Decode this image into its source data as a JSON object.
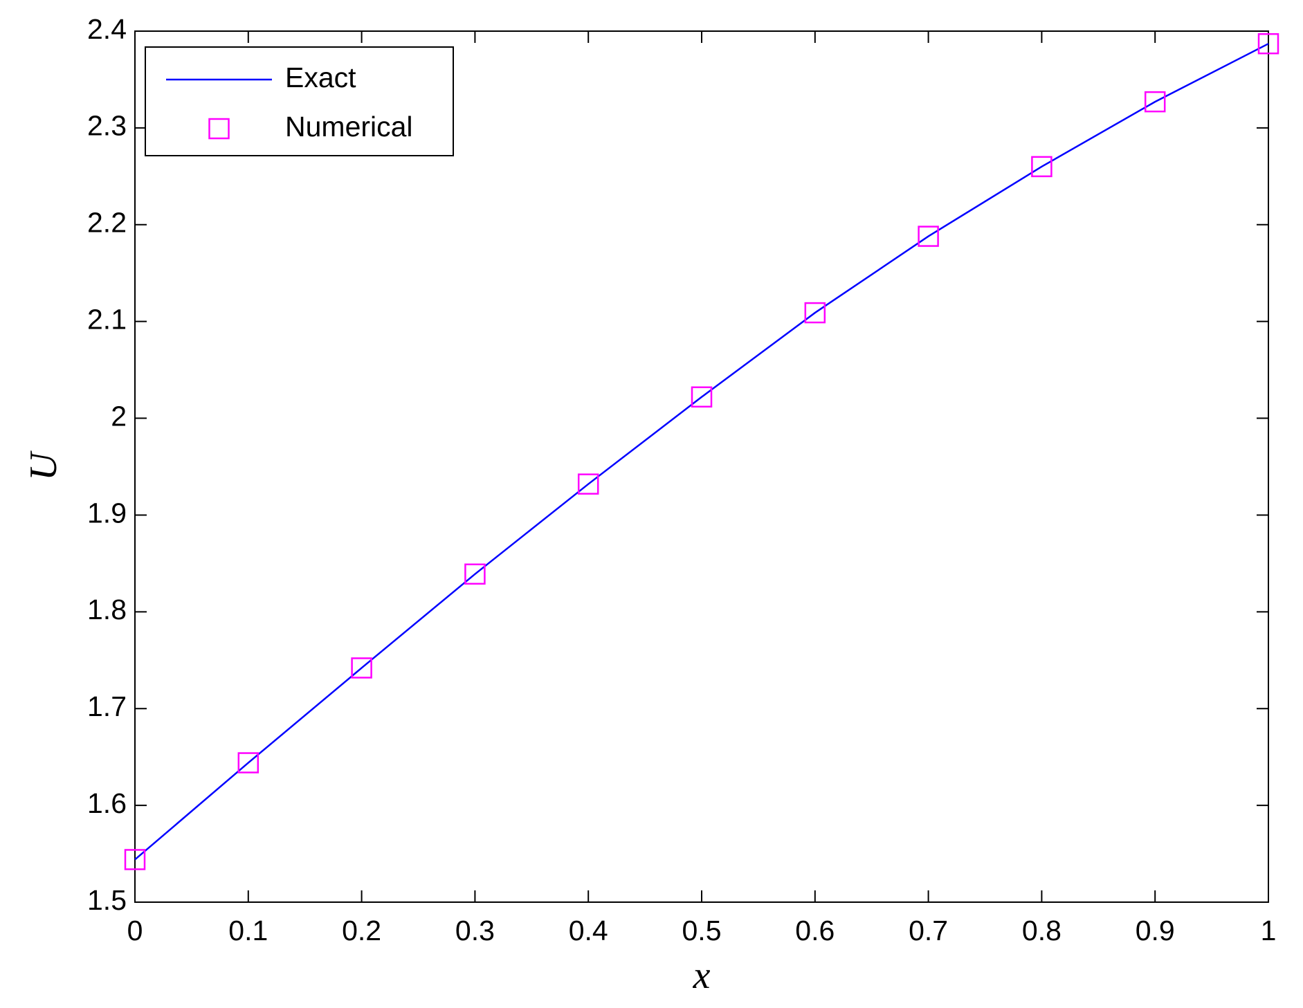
{
  "chart_data": {
    "type": "line",
    "x_label": "x",
    "y_label": "U",
    "xlim": [
      0,
      1
    ],
    "ylim": [
      1.5,
      2.4
    ],
    "xticks": [
      0,
      0.1,
      0.2,
      0.3,
      0.4,
      0.5,
      0.6,
      0.7,
      0.8,
      0.9,
      1
    ],
    "yticks": [
      1.5,
      1.6,
      1.7,
      1.8,
      1.9,
      2,
      2.1,
      2.2,
      2.3,
      2.4
    ],
    "legend": "upper-left",
    "series": [
      {
        "name": "Exact",
        "color": "#0000ff",
        "style": "line",
        "x": [
          0,
          0.1,
          0.2,
          0.3,
          0.4,
          0.5,
          0.6,
          0.7,
          0.8,
          0.9,
          1
        ],
        "values": [
          1.544,
          1.644,
          1.742,
          1.839,
          1.932,
          2.022,
          2.109,
          2.188,
          2.26,
          2.327,
          2.387
        ]
      },
      {
        "name": "Numerical",
        "color": "#ff00ff",
        "style": "square",
        "x": [
          0,
          0.1,
          0.2,
          0.3,
          0.4,
          0.5,
          0.6,
          0.7,
          0.8,
          0.9,
          1
        ],
        "values": [
          1.544,
          1.644,
          1.742,
          1.839,
          1.932,
          2.022,
          2.109,
          2.188,
          2.26,
          2.327,
          2.387
        ]
      }
    ]
  }
}
